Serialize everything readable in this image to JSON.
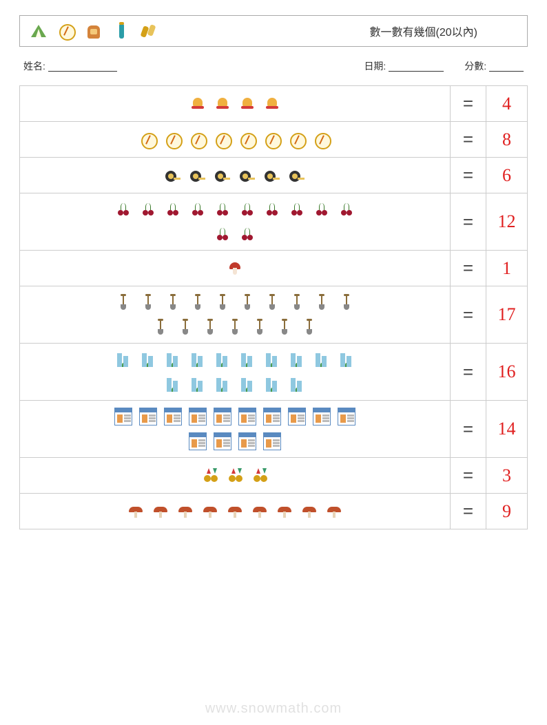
{
  "header": {
    "title": "數一數有幾個(20以內)",
    "icons": [
      "tent",
      "compass",
      "backpack",
      "bottle",
      "binoc"
    ]
  },
  "info": {
    "name_label": "姓名:",
    "date_label": "日期:",
    "score_label": "分數:",
    "name_blank_width": 100,
    "date_blank_width": 80,
    "score_blank_width": 50
  },
  "rows": [
    {
      "icon": "bell",
      "count": 4,
      "answer": "4",
      "per_row": 10
    },
    {
      "icon": "compass",
      "count": 8,
      "answer": "8",
      "per_row": 10
    },
    {
      "icon": "tape",
      "count": 6,
      "answer": "6",
      "per_row": 10
    },
    {
      "icon": "cherry",
      "count": 12,
      "answer": "12",
      "per_row": 10
    },
    {
      "icon": "mush",
      "count": 1,
      "answer": "1",
      "per_row": 10
    },
    {
      "icon": "shovel",
      "count": 17,
      "answer": "17",
      "per_row": 10
    },
    {
      "icon": "bldg",
      "count": 16,
      "answer": "16",
      "per_row": 10
    },
    {
      "icon": "brow",
      "count": 14,
      "answer": "14",
      "per_row": 10
    },
    {
      "icon": "coin",
      "count": 3,
      "answer": "3",
      "per_row": 10
    },
    {
      "icon": "mush2",
      "count": 9,
      "answer": "9",
      "per_row": 10
    }
  ],
  "equals": "=",
  "colors": {
    "answer": "#e02020",
    "border": "#cccccc"
  },
  "watermark": "www.snowmath.com"
}
